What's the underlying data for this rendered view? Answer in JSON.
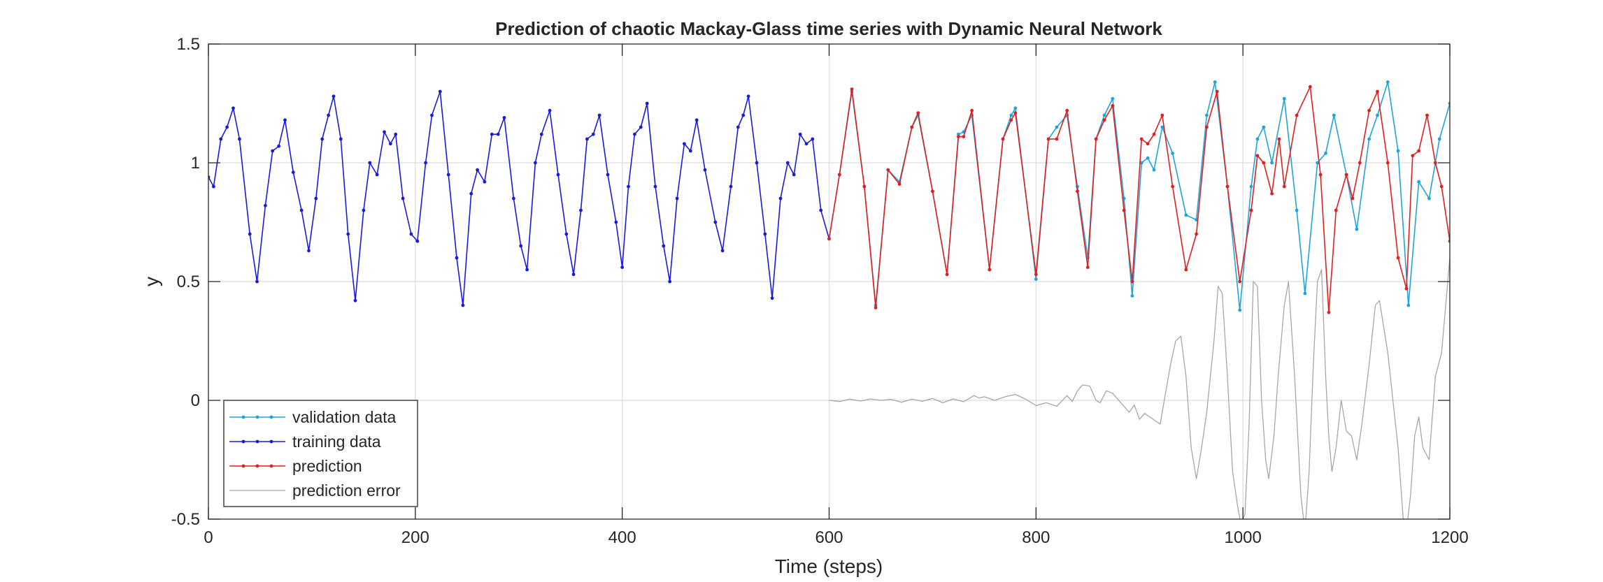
{
  "chart_data": {
    "type": "line",
    "title": "Prediction of chaotic Mackay-Glass time series with Dynamic Neural Network",
    "xlabel": "Time (steps)",
    "ylabel": "y",
    "xlim": [
      0,
      1200
    ],
    "ylim": [
      -0.5,
      1.5
    ],
    "xticks": [
      0,
      200,
      400,
      600,
      800,
      1000,
      1200
    ],
    "xtick_labels": [
      "0",
      "200",
      "400",
      "600",
      "800",
      "1000",
      "1200"
    ],
    "yticks": [
      -0.5,
      0,
      0.5,
      1,
      1.5
    ],
    "ytick_labels": [
      "-0.5",
      "0",
      "0.5",
      "1",
      "1.5"
    ],
    "grid": true,
    "legend_position": "bottom-left",
    "series": [
      {
        "name": "validation data",
        "color": "#1ea4dc",
        "marker": "dot",
        "points": [
          [
            600,
            0.68
          ],
          [
            610,
            0.95
          ],
          [
            622,
            1.3
          ],
          [
            634,
            0.9
          ],
          [
            645,
            0.4
          ],
          [
            657,
            0.97
          ],
          [
            668,
            0.92
          ],
          [
            680,
            1.15
          ],
          [
            686,
            1.2
          ],
          [
            700,
            0.88
          ],
          [
            714,
            0.53
          ],
          [
            725,
            1.12
          ],
          [
            730,
            1.13
          ],
          [
            738,
            1.2
          ],
          [
            755,
            0.55
          ],
          [
            768,
            1.1
          ],
          [
            776,
            1.2
          ],
          [
            780,
            1.23
          ],
          [
            800,
            0.51
          ],
          [
            812,
            1.1
          ],
          [
            820,
            1.15
          ],
          [
            830,
            1.2
          ],
          [
            840,
            0.9
          ],
          [
            850,
            0.6
          ],
          [
            858,
            1.1
          ],
          [
            866,
            1.2
          ],
          [
            874,
            1.27
          ],
          [
            885,
            0.85
          ],
          [
            893,
            0.44
          ],
          [
            902,
            1.0
          ],
          [
            908,
            1.02
          ],
          [
            914,
            0.97
          ],
          [
            922,
            1.15
          ],
          [
            932,
            1.04
          ],
          [
            945,
            0.78
          ],
          [
            955,
            0.76
          ],
          [
            965,
            1.2
          ],
          [
            973,
            1.34
          ],
          [
            985,
            0.9
          ],
          [
            997,
            0.38
          ],
          [
            1008,
            0.9
          ],
          [
            1014,
            1.1
          ],
          [
            1020,
            1.15
          ],
          [
            1028,
            1.0
          ],
          [
            1040,
            1.27
          ],
          [
            1052,
            0.8
          ],
          [
            1060,
            0.45
          ],
          [
            1072,
            1.0
          ],
          [
            1080,
            1.04
          ],
          [
            1088,
            1.2
          ],
          [
            1100,
            0.95
          ],
          [
            1110,
            0.72
          ],
          [
            1122,
            1.1
          ],
          [
            1130,
            1.2
          ],
          [
            1140,
            1.34
          ],
          [
            1150,
            1.05
          ],
          [
            1160,
            0.4
          ],
          [
            1170,
            0.92
          ],
          [
            1180,
            0.85
          ],
          [
            1190,
            1.1
          ],
          [
            1200,
            1.25
          ]
        ]
      },
      {
        "name": "training data",
        "color": "#1a1adb",
        "marker": "dot",
        "points": [
          [
            0,
            0.94
          ],
          [
            5,
            0.9
          ],
          [
            12,
            1.1
          ],
          [
            18,
            1.15
          ],
          [
            24,
            1.23
          ],
          [
            30,
            1.1
          ],
          [
            40,
            0.7
          ],
          [
            47,
            0.5
          ],
          [
            55,
            0.82
          ],
          [
            62,
            1.05
          ],
          [
            68,
            1.07
          ],
          [
            74,
            1.18
          ],
          [
            82,
            0.96
          ],
          [
            90,
            0.8
          ],
          [
            97,
            0.63
          ],
          [
            104,
            0.85
          ],
          [
            110,
            1.1
          ],
          [
            116,
            1.2
          ],
          [
            121,
            1.28
          ],
          [
            128,
            1.1
          ],
          [
            135,
            0.7
          ],
          [
            142,
            0.42
          ],
          [
            150,
            0.8
          ],
          [
            156,
            1.0
          ],
          [
            163,
            0.95
          ],
          [
            170,
            1.13
          ],
          [
            176,
            1.08
          ],
          [
            181,
            1.12
          ],
          [
            188,
            0.85
          ],
          [
            196,
            0.7
          ],
          [
            202,
            0.67
          ],
          [
            210,
            1.0
          ],
          [
            216,
            1.2
          ],
          [
            224,
            1.3
          ],
          [
            232,
            0.95
          ],
          [
            240,
            0.6
          ],
          [
            246,
            0.4
          ],
          [
            254,
            0.87
          ],
          [
            260,
            0.97
          ],
          [
            267,
            0.92
          ],
          [
            274,
            1.12
          ],
          [
            280,
            1.12
          ],
          [
            286,
            1.19
          ],
          [
            295,
            0.85
          ],
          [
            302,
            0.65
          ],
          [
            308,
            0.55
          ],
          [
            316,
            1.0
          ],
          [
            322,
            1.12
          ],
          [
            330,
            1.22
          ],
          [
            338,
            0.95
          ],
          [
            346,
            0.7
          ],
          [
            353,
            0.53
          ],
          [
            360,
            0.8
          ],
          [
            366,
            1.1
          ],
          [
            372,
            1.12
          ],
          [
            378,
            1.2
          ],
          [
            386,
            0.95
          ],
          [
            394,
            0.75
          ],
          [
            400,
            0.56
          ],
          [
            406,
            0.9
          ],
          [
            412,
            1.12
          ],
          [
            418,
            1.15
          ],
          [
            424,
            1.25
          ],
          [
            432,
            0.9
          ],
          [
            440,
            0.65
          ],
          [
            446,
            0.5
          ],
          [
            453,
            0.85
          ],
          [
            460,
            1.08
          ],
          [
            466,
            1.05
          ],
          [
            472,
            1.18
          ],
          [
            480,
            0.97
          ],
          [
            490,
            0.75
          ],
          [
            497,
            0.63
          ],
          [
            505,
            0.9
          ],
          [
            512,
            1.15
          ],
          [
            517,
            1.2
          ],
          [
            522,
            1.28
          ],
          [
            530,
            1.0
          ],
          [
            538,
            0.7
          ],
          [
            545,
            0.43
          ],
          [
            553,
            0.85
          ],
          [
            560,
            1.0
          ],
          [
            566,
            0.95
          ],
          [
            572,
            1.12
          ],
          [
            578,
            1.08
          ],
          [
            584,
            1.1
          ],
          [
            592,
            0.8
          ],
          [
            600,
            0.68
          ]
        ]
      },
      {
        "name": "prediction",
        "color": "#e01f1f",
        "marker": "dot",
        "points": [
          [
            600,
            0.68
          ],
          [
            610,
            0.95
          ],
          [
            622,
            1.31
          ],
          [
            634,
            0.9
          ],
          [
            645,
            0.39
          ],
          [
            657,
            0.97
          ],
          [
            668,
            0.91
          ],
          [
            680,
            1.15
          ],
          [
            686,
            1.21
          ],
          [
            700,
            0.88
          ],
          [
            714,
            0.53
          ],
          [
            725,
            1.11
          ],
          [
            730,
            1.11
          ],
          [
            738,
            1.22
          ],
          [
            755,
            0.55
          ],
          [
            768,
            1.1
          ],
          [
            776,
            1.18
          ],
          [
            780,
            1.21
          ],
          [
            800,
            0.53
          ],
          [
            812,
            1.1
          ],
          [
            820,
            1.1
          ],
          [
            830,
            1.22
          ],
          [
            840,
            0.88
          ],
          [
            850,
            0.56
          ],
          [
            858,
            1.1
          ],
          [
            866,
            1.18
          ],
          [
            874,
            1.24
          ],
          [
            885,
            0.8
          ],
          [
            893,
            0.5
          ],
          [
            902,
            1.1
          ],
          [
            908,
            1.08
          ],
          [
            914,
            1.12
          ],
          [
            922,
            1.2
          ],
          [
            932,
            0.9
          ],
          [
            945,
            0.55
          ],
          [
            955,
            0.7
          ],
          [
            965,
            1.15
          ],
          [
            975,
            1.3
          ],
          [
            985,
            0.9
          ],
          [
            997,
            0.5
          ],
          [
            1008,
            0.8
          ],
          [
            1014,
            1.03
          ],
          [
            1020,
            1.0
          ],
          [
            1028,
            0.87
          ],
          [
            1035,
            1.1
          ],
          [
            1040,
            0.9
          ],
          [
            1052,
            1.2
          ],
          [
            1065,
            1.32
          ],
          [
            1075,
            0.95
          ],
          [
            1083,
            0.37
          ],
          [
            1090,
            0.8
          ],
          [
            1100,
            0.95
          ],
          [
            1106,
            0.85
          ],
          [
            1113,
            1.0
          ],
          [
            1122,
            1.22
          ],
          [
            1130,
            1.3
          ],
          [
            1140,
            1.0
          ],
          [
            1150,
            0.6
          ],
          [
            1158,
            0.47
          ],
          [
            1164,
            1.03
          ],
          [
            1170,
            1.05
          ],
          [
            1178,
            1.2
          ],
          [
            1186,
            1.0
          ],
          [
            1192,
            0.9
          ],
          [
            1200,
            0.67
          ]
        ]
      },
      {
        "name": "prediction error",
        "color": "#a6a6a6",
        "marker": "none",
        "points": [
          [
            600,
            0.0
          ],
          [
            610,
            -0.005
          ],
          [
            620,
            0.005
          ],
          [
            630,
            -0.003
          ],
          [
            640,
            0.006
          ],
          [
            650,
            0.0
          ],
          [
            660,
            0.004
          ],
          [
            670,
            -0.008
          ],
          [
            680,
            0.005
          ],
          [
            690,
            -0.004
          ],
          [
            700,
            0.008
          ],
          [
            710,
            -0.01
          ],
          [
            720,
            0.006
          ],
          [
            730,
            -0.006
          ],
          [
            740,
            0.02
          ],
          [
            745,
            0.01
          ],
          [
            750,
            0.015
          ],
          [
            760,
            0.0
          ],
          [
            770,
            0.015
          ],
          [
            780,
            0.025
          ],
          [
            790,
            0.005
          ],
          [
            800,
            -0.022
          ],
          [
            810,
            -0.01
          ],
          [
            820,
            -0.025
          ],
          [
            830,
            0.02
          ],
          [
            835,
            -0.005
          ],
          [
            840,
            0.04
          ],
          [
            845,
            0.065
          ],
          [
            852,
            0.06
          ],
          [
            858,
            0.0
          ],
          [
            862,
            -0.01
          ],
          [
            868,
            0.04
          ],
          [
            874,
            0.03
          ],
          [
            882,
            -0.01
          ],
          [
            890,
            -0.05
          ],
          [
            895,
            -0.02
          ],
          [
            900,
            -0.08
          ],
          [
            905,
            -0.055
          ],
          [
            910,
            -0.07
          ],
          [
            915,
            -0.085
          ],
          [
            920,
            -0.1
          ],
          [
            930,
            0.15
          ],
          [
            935,
            0.25
          ],
          [
            940,
            0.27
          ],
          [
            945,
            0.1
          ],
          [
            950,
            -0.2
          ],
          [
            955,
            -0.33
          ],
          [
            960,
            -0.2
          ],
          [
            965,
            -0.05
          ],
          [
            972,
            0.25
          ],
          [
            976,
            0.48
          ],
          [
            980,
            0.45
          ],
          [
            985,
            0.1
          ],
          [
            990,
            -0.3
          ],
          [
            995,
            -0.45
          ],
          [
            998,
            -0.52
          ],
          [
            1002,
            -0.48
          ],
          [
            1006,
            -0.1
          ],
          [
            1010,
            0.5
          ],
          [
            1014,
            0.48
          ],
          [
            1018,
            0.0
          ],
          [
            1022,
            -0.25
          ],
          [
            1025,
            -0.33
          ],
          [
            1030,
            -0.15
          ],
          [
            1034,
            0.1
          ],
          [
            1040,
            0.4
          ],
          [
            1044,
            0.5
          ],
          [
            1050,
            0.1
          ],
          [
            1056,
            -0.4
          ],
          [
            1060,
            -0.55
          ],
          [
            1064,
            -0.3
          ],
          [
            1068,
            0.15
          ],
          [
            1072,
            0.5
          ],
          [
            1076,
            0.55
          ],
          [
            1080,
            0.1
          ],
          [
            1083,
            -0.15
          ],
          [
            1086,
            -0.3
          ],
          [
            1090,
            -0.2
          ],
          [
            1095,
            0.0
          ],
          [
            1100,
            -0.13
          ],
          [
            1105,
            -0.15
          ],
          [
            1110,
            -0.25
          ],
          [
            1115,
            -0.1
          ],
          [
            1122,
            0.15
          ],
          [
            1128,
            0.4
          ],
          [
            1132,
            0.42
          ],
          [
            1140,
            0.2
          ],
          [
            1150,
            -0.2
          ],
          [
            1155,
            -0.5
          ],
          [
            1158,
            -0.55
          ],
          [
            1162,
            -0.4
          ],
          [
            1166,
            -0.15
          ],
          [
            1170,
            -0.07
          ],
          [
            1174,
            -0.2
          ],
          [
            1180,
            -0.25
          ],
          [
            1186,
            0.1
          ],
          [
            1192,
            0.2
          ],
          [
            1200,
            0.6
          ]
        ]
      }
    ]
  }
}
